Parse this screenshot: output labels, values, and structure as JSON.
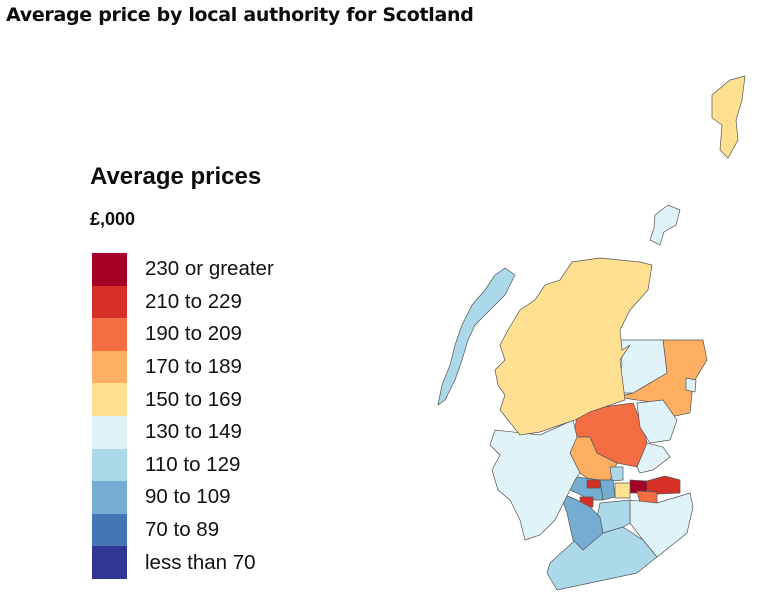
{
  "title": "Average price by local authority for Scotland",
  "legend": {
    "title": "Average prices",
    "unit": "£,000",
    "bins": [
      {
        "label": "230 or greater",
        "color": "#a50026"
      },
      {
        "label": "210 to 229",
        "color": "#d73027"
      },
      {
        "label": "190 to 209",
        "color": "#f46d43"
      },
      {
        "label": "170 to 189",
        "color": "#fdae61"
      },
      {
        "label": "150 to 169",
        "color": "#fee090"
      },
      {
        "label": "130 to 149",
        "color": "#e0f3f8"
      },
      {
        "label": "110 to 129",
        "color": "#abd9e9"
      },
      {
        "label": "90 to 109",
        "color": "#74add1"
      },
      {
        "label": "70 to 89",
        "color": "#4575b4"
      },
      {
        "label": "less than 70",
        "color": "#313695"
      }
    ]
  },
  "map": {
    "border_color": "#555555",
    "region_bins": [
      "150 to 169",
      "130 to 149",
      "170 to 189",
      "130 to 149",
      "130 to 149",
      "190 to 209",
      "170 to 189",
      "130 to 149",
      "130 to 149",
      "110 to 129",
      "230 or greater",
      "210 to 229",
      "190 to 209",
      "150 to 169",
      "130 to 149",
      "110 to 129",
      "110 to 129",
      "90 to 109",
      "90 to 109",
      "210 to 229",
      "210 to 229",
      "90 to 109",
      "90 to 109",
      "110 to 129",
      "130 to 149",
      "150 to 169"
    ]
  }
}
